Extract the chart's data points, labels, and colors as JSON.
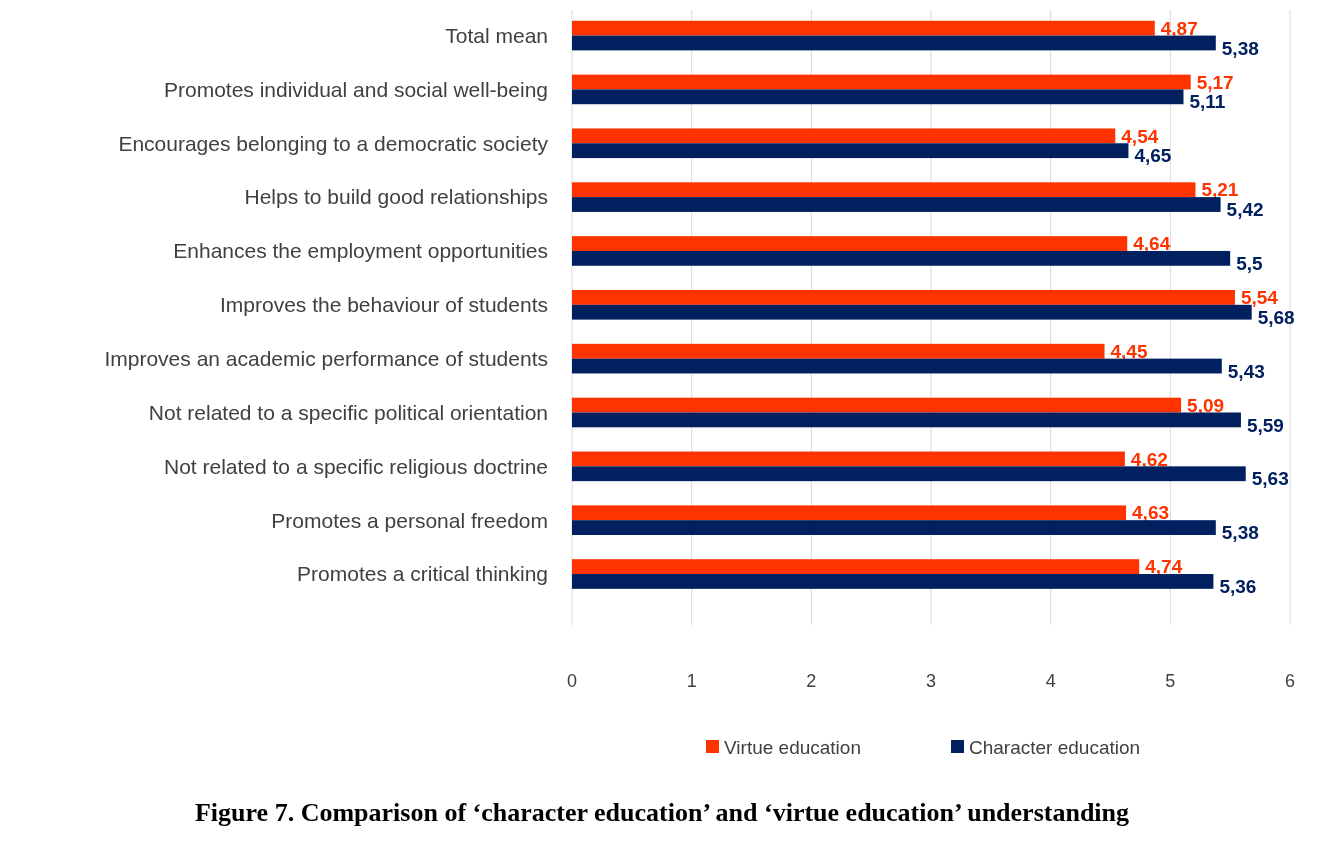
{
  "chart_data": {
    "type": "bar",
    "orientation": "horizontal",
    "title": "Figure 7. Comparison of ‘character education’ and ‘virtue education’ understanding",
    "categories": [
      "Total mean",
      "Promotes individual and social well-being",
      "Encourages belonging to a democratic society",
      "Helps to build good relationships",
      "Enhances the employment opportunities",
      "Improves the behaviour of students",
      "Improves an academic performance of students",
      "Not related to a specific political orientation",
      "Not related to a specific religious doctrine ",
      "Promotes a personal freedom",
      "Promotes a critical thinking"
    ],
    "series": [
      {
        "name": "Virtue education",
        "color": "#ff3300",
        "values": [
          4.87,
          5.17,
          4.54,
          5.21,
          4.64,
          5.54,
          4.45,
          5.09,
          4.62,
          4.63,
          4.74
        ],
        "value_labels": [
          "4,87",
          "5,17",
          "4,54",
          "5,21",
          "4,64",
          "5,54",
          "4,45",
          "5,09",
          "4,62",
          "4,63",
          "4,74"
        ]
      },
      {
        "name": "Character education",
        "color": "#002060",
        "values": [
          5.38,
          5.11,
          4.65,
          5.42,
          5.5,
          5.68,
          5.43,
          5.59,
          5.63,
          5.38,
          5.36
        ],
        "value_labels": [
          "5,38",
          "5,11",
          "4,65",
          "5,42",
          "5,5",
          "5,68",
          "5,43",
          "5,59",
          "5,63",
          "5,38",
          "5,36"
        ]
      }
    ],
    "xlim": [
      0,
      6
    ],
    "xticks": [
      0,
      1,
      2,
      3,
      4,
      5,
      6
    ],
    "grid": "x",
    "legend": "bottom"
  }
}
